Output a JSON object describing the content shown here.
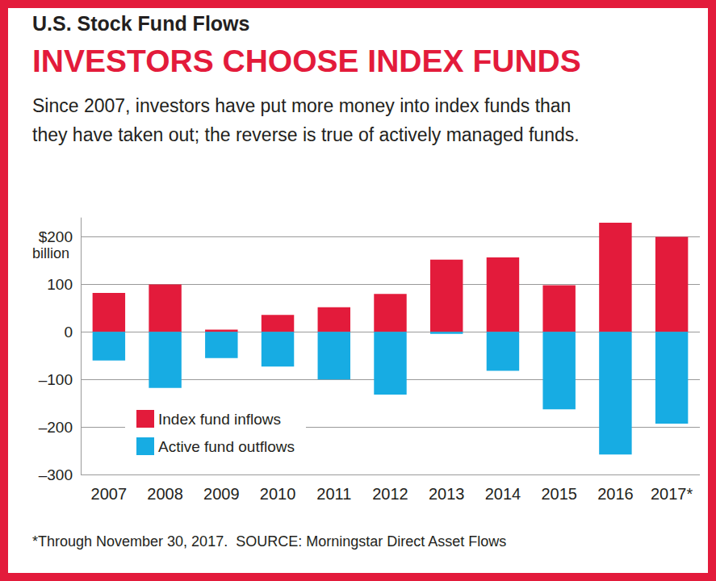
{
  "chart_data": {
    "type": "bar",
    "title": "U.S. Stock Fund Flows",
    "subtitle": "INVESTORS CHOOSE INDEX FUNDS",
    "description": [
      "Since 2007, investors have put more money into index funds than",
      "they have taken out; the reverse is true of actively managed funds."
    ],
    "note": "*Through November 30, 2017.  SOURCE: Morningstar Direct Asset Flows",
    "y_unit": "billion",
    "categories": [
      "2007",
      "2008",
      "2009",
      "2010",
      "2011",
      "2012",
      "2013",
      "2014",
      "2015",
      "2016",
      "2017*"
    ],
    "series": [
      {
        "name": "Index fund inflows",
        "color": "#e31b3b",
        "values": [
          82,
          100,
          5,
          36,
          52,
          80,
          152,
          157,
          98,
          230,
          200
        ]
      },
      {
        "name": "Active fund outflows",
        "color": "#17ace3",
        "values": [
          -60,
          -118,
          -55,
          -73,
          -100,
          -132,
          -4,
          -82,
          -163,
          -258,
          -193
        ]
      }
    ],
    "ylim": [
      -300,
      240
    ],
    "yticks": [
      {
        "value": -300,
        "label": "–300"
      },
      {
        "value": -200,
        "label": "–200"
      },
      {
        "value": -100,
        "label": "–100"
      },
      0,
      100,
      {
        "value": 200,
        "label": "$200"
      }
    ],
    "grid": true,
    "legend": "lower left"
  }
}
